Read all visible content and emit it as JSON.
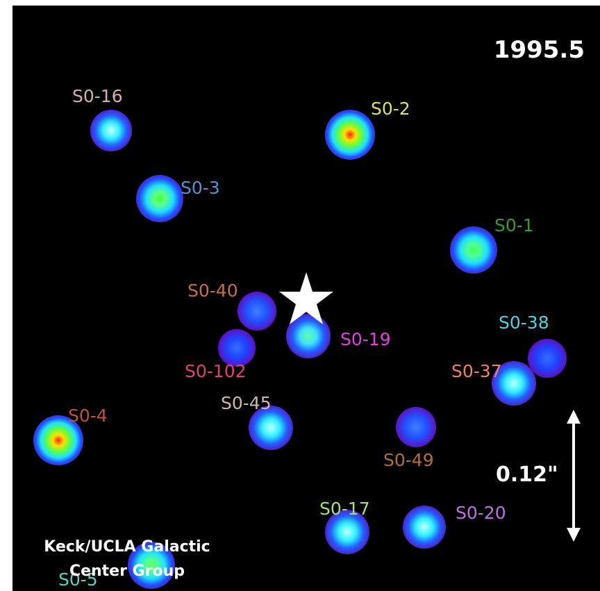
{
  "epoch": "1995.5",
  "scale_bar": "0.12\"",
  "credit": "Keck/UCLA Galactic Center Group",
  "central_marker_icon": "star-icon",
  "stars": [
    {
      "name": "S0-16",
      "color": "#d4b0b0"
    },
    {
      "name": "S0-2",
      "color": "#e0e060"
    },
    {
      "name": "S0-3",
      "color": "#5a8fd0"
    },
    {
      "name": "S0-1",
      "color": "#3a9a2a"
    },
    {
      "name": "S0-40",
      "color": "#c0704a"
    },
    {
      "name": "S0-19",
      "color": "#e040e0"
    },
    {
      "name": "S0-102",
      "color": "#e0407a"
    },
    {
      "name": "S0-38",
      "color": "#50d0e0"
    },
    {
      "name": "S0-37",
      "color": "#f08060"
    },
    {
      "name": "S0-45",
      "color": "#d0b8b0"
    },
    {
      "name": "S0-4",
      "color": "#c0503a"
    },
    {
      "name": "S0-49",
      "color": "#b0703a"
    },
    {
      "name": "S0-17",
      "color": "#a0e080"
    },
    {
      "name": "S0-20",
      "color": "#c070e0"
    },
    {
      "name": "S0-5",
      "color": "#5ad0c0"
    }
  ]
}
